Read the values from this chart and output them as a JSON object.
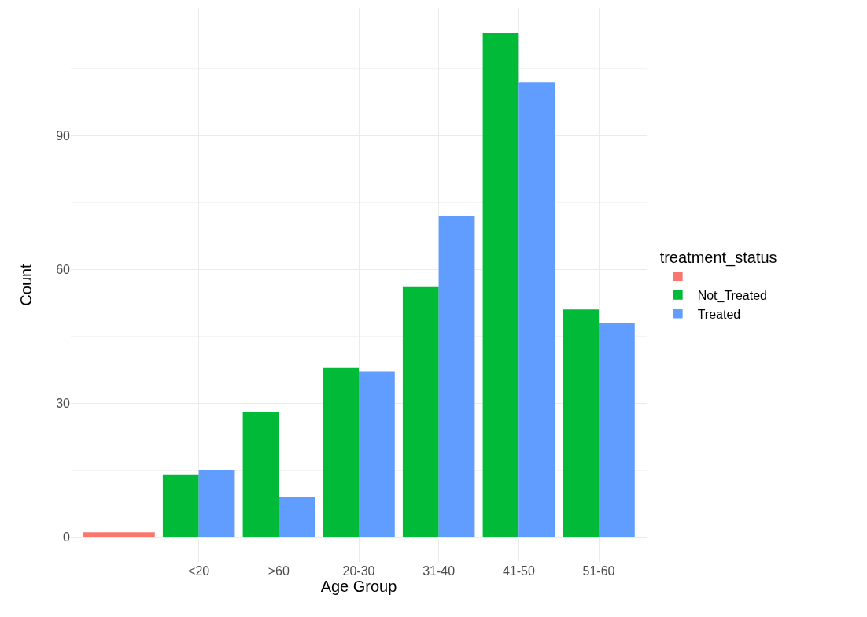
{
  "chart_data": {
    "type": "bar",
    "xlabel": "Age Group",
    "ylabel": "Count",
    "legend_title": "treatment_status",
    "categories": [
      null,
      "<20",
      ">60",
      "20-30",
      "31-40",
      "41-50",
      "51-60"
    ],
    "series": [
      {
        "color": "#f8766d",
        "values": [
          1,
          null,
          null,
          null,
          null,
          null,
          null
        ]
      },
      {
        "name": "Not_Treated",
        "color": "#00ba38",
        "values": [
          null,
          14,
          28,
          38,
          56,
          113,
          51
        ]
      },
      {
        "name": "Treated",
        "color": "#619cff",
        "values": [
          null,
          15,
          9,
          37,
          72,
          102,
          48
        ]
      }
    ],
    "ylim": [
      -5.65,
      118.65
    ],
    "yticks": [
      0,
      30,
      60,
      90
    ],
    "grid": true,
    "legend": "right"
  }
}
